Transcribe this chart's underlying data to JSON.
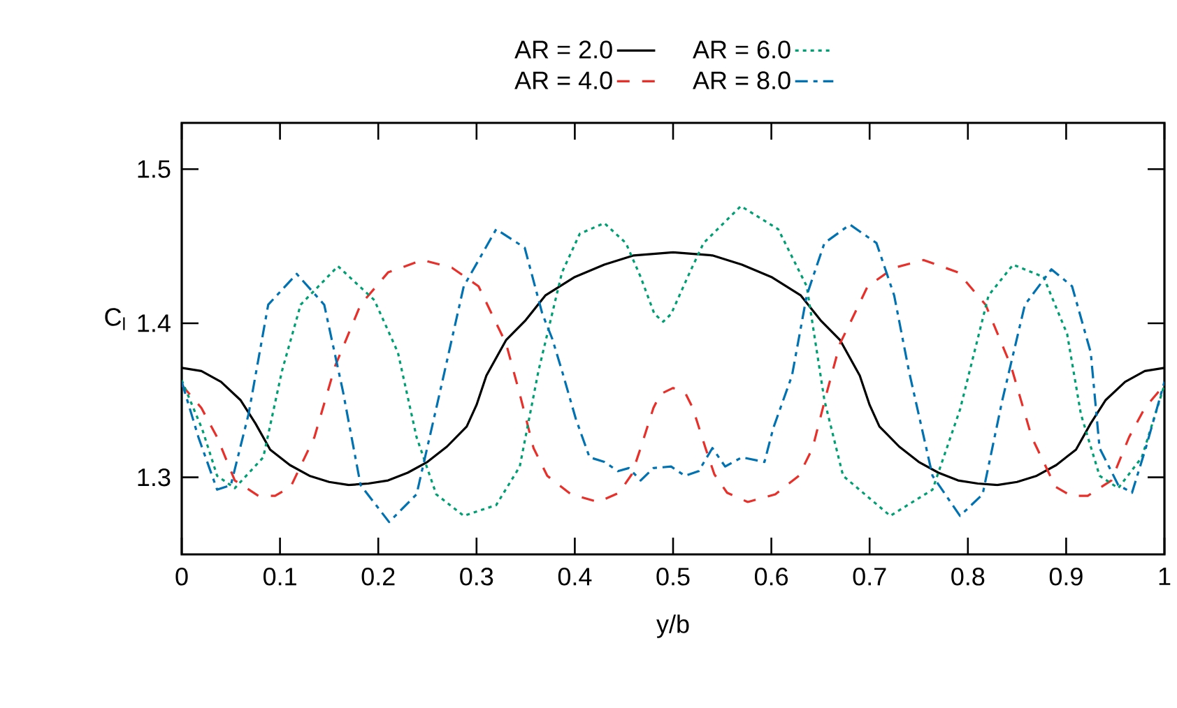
{
  "chart_data": {
    "type": "line",
    "xlabel": "y/b",
    "ylabel": "C$_{l}$",
    "xlim": [
      0,
      1
    ],
    "ylim": [
      1.25,
      1.53
    ],
    "xticks": [
      0,
      0.1,
      0.2,
      0.3,
      0.4,
      0.5,
      0.6,
      0.7,
      0.8,
      0.9,
      1
    ],
    "yticks": [
      1.3,
      1.4,
      1.5
    ],
    "grid": false,
    "legend": "top",
    "marker": "none",
    "series": [
      {
        "name": "AR = 2.0",
        "color": "#000000",
        "line_style": "solid",
        "x": [
          0,
          0.02,
          0.04,
          0.06,
          0.075,
          0.09,
          0.11,
          0.13,
          0.15,
          0.17,
          0.19,
          0.21,
          0.23,
          0.25,
          0.27,
          0.29,
          0.3,
          0.31,
          0.33,
          0.35,
          0.37,
          0.4,
          0.43,
          0.46,
          0.5,
          0.54,
          0.57,
          0.6,
          0.63,
          0.65,
          0.67,
          0.69,
          0.7,
          0.71,
          0.73,
          0.75,
          0.77,
          0.79,
          0.81,
          0.83,
          0.85,
          0.87,
          0.89,
          0.91,
          0.925,
          0.94,
          0.96,
          0.98,
          1
        ],
        "values": [
          1.371,
          1.369,
          1.362,
          1.35,
          1.335,
          1.318,
          1.308,
          1.301,
          1.297,
          1.295,
          1.296,
          1.298,
          1.303,
          1.31,
          1.32,
          1.333,
          1.347,
          1.366,
          1.389,
          1.402,
          1.418,
          1.43,
          1.438,
          1.444,
          1.446,
          1.444,
          1.438,
          1.43,
          1.418,
          1.402,
          1.389,
          1.366,
          1.347,
          1.333,
          1.32,
          1.31,
          1.303,
          1.298,
          1.296,
          1.295,
          1.297,
          1.301,
          1.308,
          1.318,
          1.335,
          1.35,
          1.362,
          1.369,
          1.371
        ]
      },
      {
        "name": "AR = 4.0",
        "color": "#e8302a",
        "line_style": "dashed",
        "x": [
          0,
          0.02,
          0.036,
          0.054,
          0.078,
          0.095,
          0.111,
          0.135,
          0.156,
          0.182,
          0.21,
          0.245,
          0.275,
          0.302,
          0.32,
          0.33,
          0.344,
          0.358,
          0.372,
          0.396,
          0.424,
          0.445,
          0.458,
          0.467,
          0.48,
          0.487,
          0.5,
          0.513,
          0.52,
          0.533,
          0.542,
          0.555,
          0.576,
          0.604,
          0.628,
          0.642,
          0.656,
          0.67,
          0.68,
          0.698,
          0.725,
          0.755,
          0.79,
          0.818,
          0.844,
          0.865,
          0.889,
          0.905,
          0.922,
          0.946,
          0.964,
          0.98,
          1
        ],
        "values": [
          1.36,
          1.345,
          1.326,
          1.298,
          1.288,
          1.288,
          1.294,
          1.326,
          1.372,
          1.412,
          1.433,
          1.441,
          1.436,
          1.424,
          1.4,
          1.387,
          1.354,
          1.319,
          1.301,
          1.289,
          1.284,
          1.29,
          1.302,
          1.319,
          1.345,
          1.354,
          1.358,
          1.354,
          1.345,
          1.319,
          1.302,
          1.29,
          1.284,
          1.289,
          1.301,
          1.319,
          1.354,
          1.387,
          1.4,
          1.424,
          1.436,
          1.441,
          1.433,
          1.412,
          1.372,
          1.326,
          1.294,
          1.288,
          1.288,
          1.298,
          1.326,
          1.345,
          1.36
        ]
      },
      {
        "name": "AR = 6.0",
        "color": "#009e73",
        "line_style": "dotted",
        "x": [
          0,
          0.021,
          0.036,
          0.054,
          0.083,
          0.102,
          0.121,
          0.159,
          0.196,
          0.22,
          0.239,
          0.259,
          0.287,
          0.32,
          0.344,
          0.363,
          0.387,
          0.405,
          0.43,
          0.452,
          0.467,
          0.481,
          0.49,
          0.498,
          0.517,
          0.531,
          0.569,
          0.607,
          0.636,
          0.654,
          0.673,
          0.721,
          0.764,
          0.792,
          0.821,
          0.846,
          0.877,
          0.901,
          0.915,
          0.934,
          0.953,
          0.977,
          1
        ],
        "values": [
          1.363,
          1.331,
          1.301,
          1.293,
          1.313,
          1.369,
          1.412,
          1.437,
          1.415,
          1.381,
          1.326,
          1.289,
          1.275,
          1.282,
          1.307,
          1.369,
          1.433,
          1.458,
          1.465,
          1.452,
          1.43,
          1.406,
          1.401,
          1.406,
          1.433,
          1.452,
          1.476,
          1.461,
          1.424,
          1.35,
          1.301,
          1.275,
          1.292,
          1.344,
          1.418,
          1.438,
          1.43,
          1.393,
          1.341,
          1.301,
          1.293,
          1.313,
          1.36
        ]
      },
      {
        "name": "AR = 8.0",
        "color": "#0072b2",
        "line_style": "dashdot",
        "x": [
          0,
          0.017,
          0.036,
          0.05,
          0.068,
          0.088,
          0.117,
          0.145,
          0.164,
          0.182,
          0.211,
          0.239,
          0.263,
          0.287,
          0.32,
          0.349,
          0.367,
          0.377,
          0.387,
          0.401,
          0.415,
          0.43,
          0.444,
          0.455,
          0.467,
          0.48,
          0.498,
          0.512,
          0.526,
          0.54,
          0.553,
          0.57,
          0.593,
          0.602,
          0.621,
          0.636,
          0.654,
          0.68,
          0.707,
          0.725,
          0.74,
          0.764,
          0.792,
          0.815,
          0.835,
          0.858,
          0.885,
          0.906,
          0.925,
          0.934,
          0.953,
          0.967,
          0.981,
          1
        ],
        "values": [
          1.362,
          1.326,
          1.292,
          1.295,
          1.341,
          1.412,
          1.432,
          1.412,
          1.356,
          1.295,
          1.271,
          1.289,
          1.356,
          1.424,
          1.461,
          1.449,
          1.406,
          1.39,
          1.369,
          1.338,
          1.313,
          1.31,
          1.304,
          1.306,
          1.298,
          1.306,
          1.307,
          1.301,
          1.304,
          1.319,
          1.307,
          1.313,
          1.31,
          1.332,
          1.366,
          1.418,
          1.452,
          1.464,
          1.452,
          1.418,
          1.369,
          1.301,
          1.275,
          1.289,
          1.35,
          1.412,
          1.435,
          1.424,
          1.381,
          1.319,
          1.295,
          1.29,
          1.319,
          1.362
        ]
      }
    ]
  }
}
